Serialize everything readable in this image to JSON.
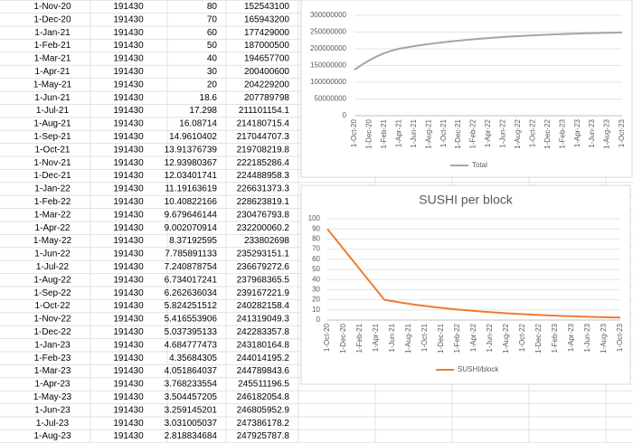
{
  "table": {
    "rows": [
      [
        "1-Nov-20",
        "191430",
        "80",
        "152543100"
      ],
      [
        "1-Dec-20",
        "191430",
        "70",
        "165943200"
      ],
      [
        "1-Jan-21",
        "191430",
        "60",
        "177429000"
      ],
      [
        "1-Feb-21",
        "191430",
        "50",
        "187000500"
      ],
      [
        "1-Mar-21",
        "191430",
        "40",
        "194657700"
      ],
      [
        "1-Apr-21",
        "191430",
        "30",
        "200400600"
      ],
      [
        "1-May-21",
        "191430",
        "20",
        "204229200"
      ],
      [
        "1-Jun-21",
        "191430",
        "18.6",
        "207789798"
      ],
      [
        "1-Jul-21",
        "191430",
        "17.298",
        "211101154.1"
      ],
      [
        "1-Aug-21",
        "191430",
        "16.08714",
        "214180715.4"
      ],
      [
        "1-Sep-21",
        "191430",
        "14.9610402",
        "217044707.3"
      ],
      [
        "1-Oct-21",
        "191430",
        "13.91376739",
        "219708219.8"
      ],
      [
        "1-Nov-21",
        "191430",
        "12.93980367",
        "222185286.4"
      ],
      [
        "1-Dec-21",
        "191430",
        "12.03401741",
        "224488958.3"
      ],
      [
        "1-Jan-22",
        "191430",
        "11.19163619",
        "226631373.3"
      ],
      [
        "1-Feb-22",
        "191430",
        "10.40822166",
        "228623819.1"
      ],
      [
        "1-Mar-22",
        "191430",
        "9.679646144",
        "230476793.8"
      ],
      [
        "1-Apr-22",
        "191430",
        "9.002070914",
        "232200060.2"
      ],
      [
        "1-May-22",
        "191430",
        "8.37192595",
        "233802698"
      ],
      [
        "1-Jun-22",
        "191430",
        "7.785891133",
        "235293151.1"
      ],
      [
        "1-Jul-22",
        "191430",
        "7.240878754",
        "236679272.6"
      ],
      [
        "1-Aug-22",
        "191430",
        "6.734017241",
        "237968365.5"
      ],
      [
        "1-Sep-22",
        "191430",
        "6.262636034",
        "239167221.9"
      ],
      [
        "1-Oct-22",
        "191430",
        "5.824251512",
        "240282158.4"
      ],
      [
        "1-Nov-22",
        "191430",
        "5.416553906",
        "241319049.3"
      ],
      [
        "1-Dec-22",
        "191430",
        "5.037395133",
        "242283357.8"
      ],
      [
        "1-Jan-23",
        "191430",
        "4.684777473",
        "243180164.8"
      ],
      [
        "1-Feb-23",
        "191430",
        "4.35684305",
        "244014195.2"
      ],
      [
        "1-Mar-23",
        "191430",
        "4.051864037",
        "244789843.6"
      ],
      [
        "1-Apr-23",
        "191430",
        "3.768233554",
        "245511196.5"
      ],
      [
        "1-May-23",
        "191430",
        "3.504457205",
        "246182054.8"
      ],
      [
        "1-Jun-23",
        "191430",
        "3.259145201",
        "246805952.9"
      ],
      [
        "1-Jul-23",
        "191430",
        "3.031005037",
        "247386178.2"
      ],
      [
        "1-Aug-23",
        "191430",
        "2.818834684",
        "247925787.8"
      ]
    ]
  },
  "chart_data": [
    {
      "type": "line",
      "categories": [
        "1-Oct-20",
        null,
        "1-Dec-20",
        null,
        "1-Feb-21",
        null,
        "1-Apr-21",
        null,
        "1-Jun-21",
        null,
        "1-Aug-21",
        null,
        "1-Oct-21",
        null,
        "1-Dec-21",
        null,
        "1-Feb-22",
        null,
        "1-Apr-22",
        null,
        "1-Jun-22",
        null,
        "1-Aug-22",
        null,
        "1-Oct-22",
        null,
        "1-Dec-22",
        null,
        "1-Feb-23",
        null,
        "1-Apr-23",
        null,
        "1-Jun-23",
        null,
        "1-Aug-23",
        null,
        "1-Oct-23"
      ],
      "series": [
        {
          "name": "Total",
          "color": "#a5a5a5",
          "values": [
            137228700,
            152543100,
            165943200,
            177429000,
            187000500,
            194657700,
            200400600,
            204229200,
            207789798,
            211101154.1,
            214180715.4,
            217044707.3,
            219708219.8,
            222185286.4,
            224488958.3,
            226631373.3,
            228623819.1,
            230476793.8,
            232200060.2,
            233802698,
            235293151.1,
            236679272.6,
            237968365.5,
            239167221.9,
            240282158.4,
            241319049.3,
            242283357.8,
            243180164.8,
            244014195.2,
            244789843.6,
            245511196.5,
            246182054.8,
            246805952.9,
            247386178.2,
            247925787.8,
            248427000,
            248894000
          ]
        }
      ],
      "ylim": [
        0,
        300000000
      ],
      "yticks": [
        0,
        50000000,
        100000000,
        150000000,
        200000000,
        250000000,
        300000000
      ],
      "grid": true,
      "legend": "bottom"
    },
    {
      "type": "line",
      "title": "SUSHI per block",
      "categories": [
        "1-Oct-20",
        null,
        "1-Dec-20",
        null,
        "1-Feb-21",
        null,
        "1-Apr-21",
        null,
        "1-Jun-21",
        null,
        "1-Aug-21",
        null,
        "1-Oct-21",
        null,
        "1-Dec-21",
        null,
        "1-Feb-22",
        null,
        "1-Apr-22",
        null,
        "1-Jun-22",
        null,
        "1-Aug-22",
        null,
        "1-Oct-22",
        null,
        "1-Dec-22",
        null,
        "1-Feb-23",
        null,
        "1-Apr-23",
        null,
        "1-Jun-23",
        null,
        "1-Aug-23",
        null,
        "1-Oct-23"
      ],
      "series": [
        {
          "name": "SUSHI/block",
          "color": "#ed7d31",
          "values": [
            90,
            80,
            70,
            60,
            50,
            40,
            30,
            20,
            18.6,
            17.298,
            16.08714,
            14.9610402,
            13.91376739,
            12.93980367,
            12.03401741,
            11.19163619,
            10.40822166,
            9.679646144,
            9.002070914,
            8.37192595,
            7.785891133,
            7.240878754,
            6.734017241,
            6.262636034,
            5.824251512,
            5.416553906,
            5.037395133,
            4.684777473,
            4.35684305,
            4.051864037,
            3.768233554,
            3.504457205,
            3.259145201,
            3.031005037,
            2.818834684,
            2.62,
            2.44
          ]
        }
      ],
      "ylim": [
        0,
        100
      ],
      "yticks": [
        0,
        10,
        20,
        30,
        40,
        50,
        60,
        70,
        80,
        90,
        100
      ],
      "grid": true,
      "legend": "bottom"
    }
  ]
}
